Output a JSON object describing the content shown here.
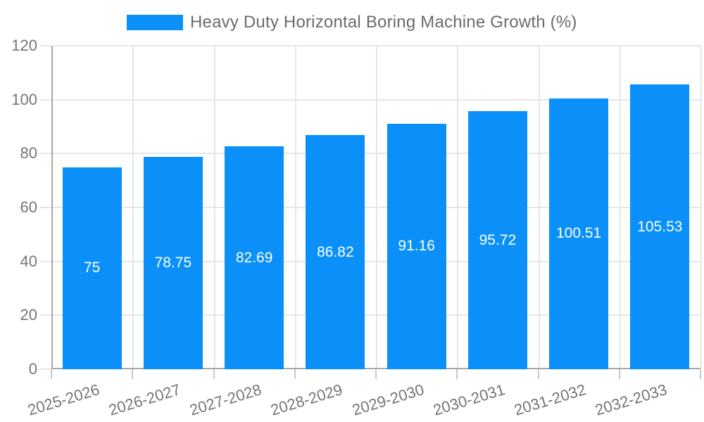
{
  "chart_data": {
    "type": "bar",
    "title": "Heavy Duty Horizontal Boring Machine Growth (%)",
    "xlabel": "",
    "ylabel": "",
    "categories": [
      "2025-2026",
      "2026-2027",
      "2027-2028",
      "2028-2029",
      "2029-2030",
      "2030-2031",
      "2031-2032",
      "2032-2033"
    ],
    "values": [
      75,
      78.75,
      82.69,
      86.82,
      91.16,
      95.72,
      100.51,
      105.53
    ],
    "value_labels": [
      "75",
      "78.75",
      "82.69",
      "86.82",
      "91.16",
      "95.72",
      "100.51",
      "105.53"
    ],
    "ylim": [
      0,
      120
    ],
    "yticks": [
      0,
      20,
      40,
      60,
      80,
      100,
      120
    ],
    "grid": true,
    "legend_position": "top-center",
    "colors": {
      "bar": "#0A90F8",
      "bar_label_text": "#ffffff",
      "legend_text": "#6b6b6b",
      "tick_text": "#757575",
      "axis_line": "#a8a8a8",
      "gridline": "#e6e6e6",
      "tick_mark": "#c9c9c9",
      "background": "#ffffff"
    }
  }
}
